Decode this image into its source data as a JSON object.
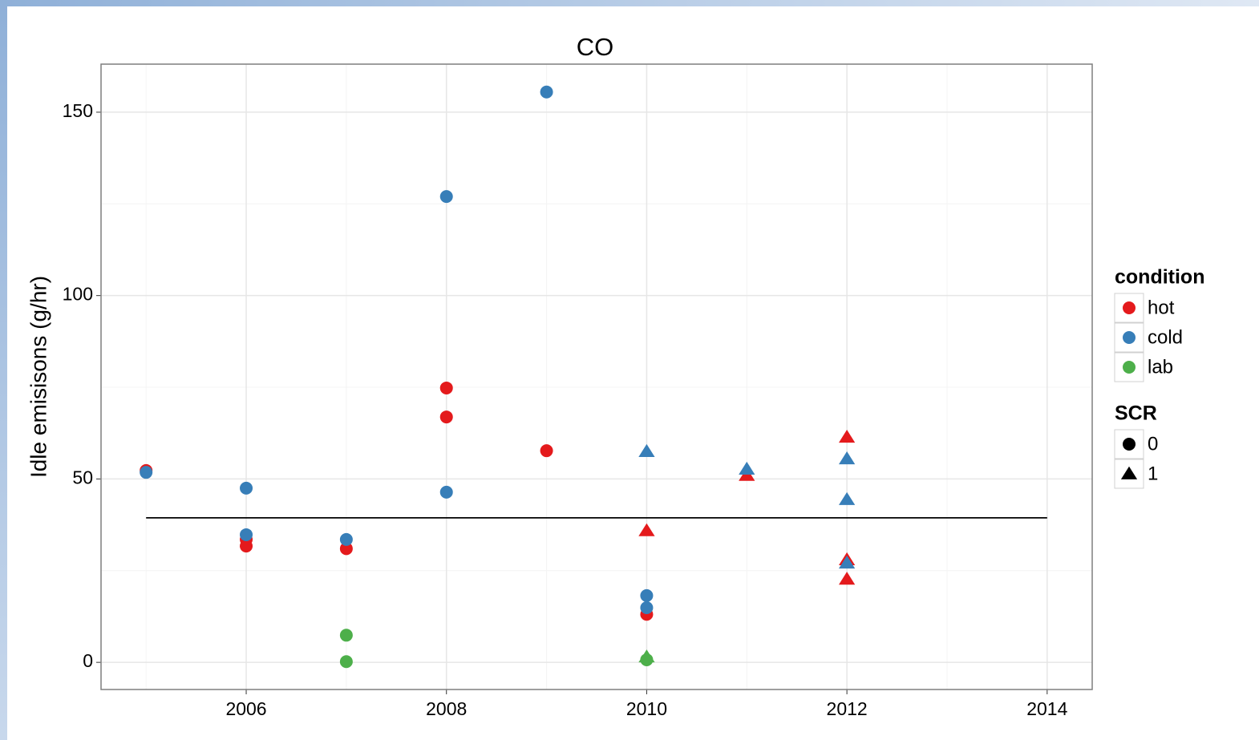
{
  "chart_data": {
    "type": "scatter",
    "title": "CO",
    "y_label": "Idle emisisons (g/hr)",
    "xlim": [
      2004.55,
      2014.45
    ],
    "ylim": [
      -7.4,
      163.1
    ],
    "xticks": [
      2006,
      2008,
      2010,
      2012,
      2014
    ],
    "yticks": [
      0,
      50,
      100,
      150
    ],
    "grid": true,
    "minor_grid": true,
    "legend_position": "right",
    "legend": {
      "color": {
        "title": "condition",
        "entries": [
          {
            "name": "hot",
            "color": "#e41a1c"
          },
          {
            "name": "cold",
            "color": "#377eb8"
          },
          {
            "name": "lab",
            "color": "#4daf4a"
          }
        ]
      },
      "shape": {
        "title": "SCR",
        "entries": [
          {
            "name": "0",
            "shape": "circle"
          },
          {
            "name": "1",
            "shape": "triangle"
          }
        ]
      }
    },
    "series": [
      {
        "condition": "hot",
        "SCR": "0",
        "x": [
          2005,
          2006,
          2006,
          2007,
          2008,
          2008,
          2009,
          2010
        ],
        "values": [
          52.3,
          33.5,
          31.7,
          31.0,
          74.8,
          66.9,
          57.7,
          13.1
        ]
      },
      {
        "condition": "cold",
        "SCR": "0",
        "x": [
          2005,
          2006,
          2006,
          2007,
          2008,
          2008,
          2009,
          2010,
          2010
        ],
        "values": [
          51.8,
          47.5,
          34.8,
          33.5,
          127.0,
          46.4,
          155.5,
          18.2,
          14.9
        ]
      },
      {
        "condition": "lab",
        "SCR": "0",
        "x": [
          2007,
          2007,
          2010
        ],
        "values": [
          7.4,
          0.2,
          0.7
        ]
      },
      {
        "condition": "hot",
        "SCR": "1",
        "x": [
          2010,
          2011,
          2012,
          2012,
          2012
        ],
        "values": [
          35.9,
          51.0,
          61.4,
          28.0,
          22.7
        ]
      },
      {
        "condition": "cold",
        "SCR": "1",
        "x": [
          2010,
          2011,
          2012,
          2012,
          2012
        ],
        "values": [
          57.5,
          52.7,
          55.5,
          44.4,
          27.1
        ]
      },
      {
        "condition": "lab",
        "SCR": "1",
        "x": [
          2010
        ],
        "values": [
          1.5
        ]
      }
    ],
    "reference_line": {
      "value": 39.4,
      "x": [
        2005,
        2014
      ],
      "color": "#000000"
    }
  }
}
